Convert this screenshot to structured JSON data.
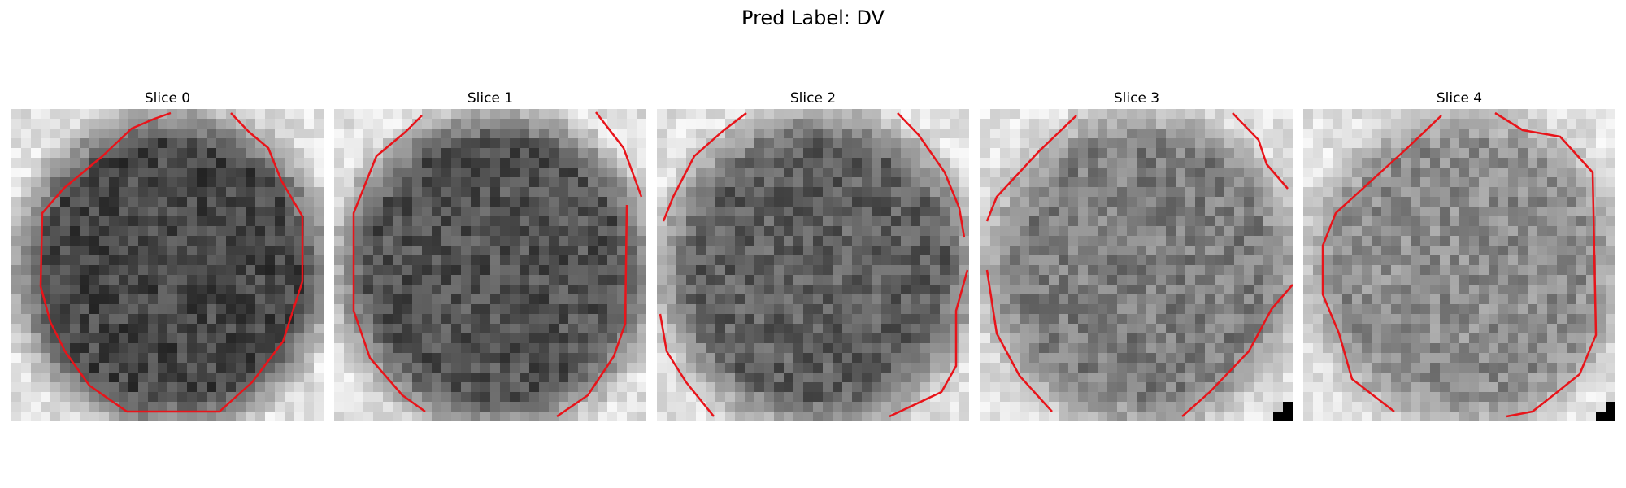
{
  "figure": {
    "title": "Pred Label: DV"
  },
  "slices": [
    {
      "label": "Slice 0",
      "tone": 70,
      "corner": false,
      "seed": 11
    },
    {
      "label": "Slice 1",
      "tone": 82,
      "corner": false,
      "seed": 23
    },
    {
      "label": "Slice 2",
      "tone": 95,
      "corner": false,
      "seed": 37
    },
    {
      "label": "Slice 3",
      "tone": 125,
      "corner": true,
      "seed": 41
    },
    {
      "label": "Slice 4",
      "tone": 140,
      "corner": true,
      "seed": 53
    }
  ],
  "colors": {
    "contour": "#e8141a",
    "background": "#ffffff"
  }
}
